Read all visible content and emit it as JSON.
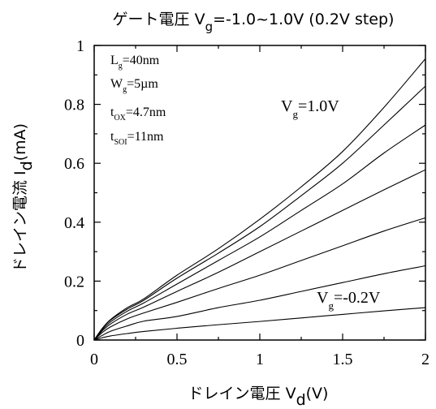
{
  "chart_data": {
    "type": "line",
    "title": {
      "prefix": "ゲート電圧 V",
      "sub": "g",
      "suffix": "=-1.0~1.0V (0.2V step)"
    },
    "xlabel": {
      "main": "ドレイン電圧  V",
      "sub": "d",
      "unit": "(V)"
    },
    "ylabel": {
      "main": "ドレイン電流  I",
      "sub": "d",
      "unit": "(mA)"
    },
    "xlim": [
      0,
      2
    ],
    "ylim": [
      0,
      1
    ],
    "x_ticks": [
      0,
      0.5,
      1,
      1.5,
      2
    ],
    "x_tick_labels": [
      "0",
      "0.5",
      "1",
      "1.5",
      "2"
    ],
    "y_ticks": [
      0,
      0.2,
      0.4,
      0.6,
      0.8,
      1
    ],
    "y_tick_labels": [
      "0",
      "0.2",
      "0.4",
      "0.6",
      "0.8",
      "1"
    ],
    "grid": false,
    "params": [
      {
        "main": "L",
        "sub": "g",
        "rest": "=40nm"
      },
      {
        "main": "W",
        "sub": "g",
        "rest": "=5µm"
      },
      {
        "main": "t",
        "sub": "OX",
        "rest": "=4.7nm"
      },
      {
        "main": "t",
        "sub": "SOI",
        "rest": "=11nm"
      }
    ],
    "annotations": [
      {
        "main": "V",
        "sub": "g",
        "rest": "=1.0V"
      },
      {
        "main": "V",
        "sub": "g",
        "rest": "=-0.2V"
      }
    ],
    "x": [
      0,
      0.05,
      0.1,
      0.2,
      0.3,
      0.5,
      0.75,
      1.0,
      1.25,
      1.5,
      1.75,
      2.0
    ],
    "series": [
      {
        "values": [
          0,
          0.04,
          0.07,
          0.11,
          0.14,
          0.22,
          0.31,
          0.41,
          0.52,
          0.64,
          0.79,
          0.955
        ]
      },
      {
        "values": [
          0,
          0.04,
          0.068,
          0.105,
          0.135,
          0.21,
          0.295,
          0.385,
          0.49,
          0.6,
          0.73,
          0.862
        ]
      },
      {
        "values": [
          0,
          0.036,
          0.062,
          0.098,
          0.126,
          0.19,
          0.27,
          0.35,
          0.44,
          0.53,
          0.635,
          0.73
        ]
      },
      {
        "values": [
          0,
          0.032,
          0.055,
          0.088,
          0.112,
          0.165,
          0.23,
          0.3,
          0.37,
          0.44,
          0.51,
          0.578
        ]
      },
      {
        "values": [
          0,
          0.026,
          0.045,
          0.072,
          0.092,
          0.128,
          0.175,
          0.22,
          0.27,
          0.32,
          0.37,
          0.415
        ]
      },
      {
        "values": [
          0,
          0.016,
          0.03,
          0.048,
          0.064,
          0.08,
          0.11,
          0.135,
          0.165,
          0.195,
          0.225,
          0.252
        ]
      },
      {
        "values": [
          0,
          0.008,
          0.014,
          0.022,
          0.029,
          0.04,
          0.052,
          0.063,
          0.075,
          0.087,
          0.099,
          0.11
        ]
      }
    ]
  }
}
